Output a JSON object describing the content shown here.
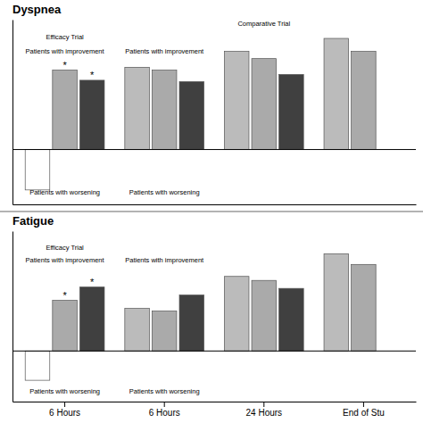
{
  "chart_data": [
    {
      "type": "bar",
      "title": "Dyspnea",
      "categories": [
        null,
        null,
        null,
        null
      ],
      "series": [
        {
          "colors": [
            "white",
            "#bbbbbb",
            "#bbbbbb",
            "#bbbbbb"
          ],
          "values": [
            -28,
            57,
            68,
            77
          ]
        },
        {
          "color": "#aaaaaa",
          "values": [
            55,
            55,
            63,
            68
          ]
        },
        {
          "color": "#404040",
          "values": [
            48,
            47,
            52,
            0
          ]
        }
      ],
      "ylim": [
        -38,
        90
      ],
      "yticks": [],
      "tick_labels": false,
      "grid": false,
      "annotations": [
        {
          "text": "Efficacy Trial",
          "category": 0,
          "y": 80
        },
        {
          "text": "Patients with improvement",
          "category": 0,
          "y": 70
        },
        {
          "text": "Patients with worsening",
          "category": 0,
          "y": -28
        },
        {
          "text": "Patients with improvement",
          "category": 1,
          "y": 70
        },
        {
          "text": "Patients with worsening",
          "category": 1,
          "y": -28
        },
        {
          "text": "Comparative Trial",
          "category": 2,
          "y": 89
        },
        {
          "text": "*",
          "category": 0,
          "series": 1,
          "y": 56
        },
        {
          "text": "*",
          "category": 0,
          "series": 2,
          "y": 49
        }
      ]
    },
    {
      "type": "bar",
      "title": "Fatigue",
      "categories": [
        "6 Hours",
        "6 Hours",
        "24 Hours",
        "End of Stu"
      ],
      "series": [
        {
          "colors": [
            "white",
            "#bbbbbb",
            "#bbbbbb",
            "#bbbbbb"
          ],
          "values": [
            -22,
            32,
            56,
            73
          ]
        },
        {
          "color": "#aaaaaa",
          "values": [
            38,
            30,
            53,
            65
          ]
        },
        {
          "color": "#404040",
          "values": [
            48,
            42,
            47,
            0
          ]
        }
      ],
      "ylim": [
        -38,
        90
      ],
      "yticks": [],
      "tick_labels": "x",
      "grid": false,
      "annotations": [
        {
          "text": "Efficacy Trial",
          "category": 0,
          "y": 80
        },
        {
          "text": "Patients with improvement",
          "category": 0,
          "y": 70
        },
        {
          "text": "Patients with worsening",
          "category": 0,
          "y": -28
        },
        {
          "text": "Patients with improvement",
          "category": 1,
          "y": 70
        },
        {
          "text": "Patients with worsening",
          "category": 1,
          "y": -28
        },
        {
          "text": "*",
          "category": 0,
          "series": 1,
          "y": 39
        },
        {
          "text": "*",
          "category": 0,
          "series": 2,
          "y": 49
        }
      ]
    }
  ]
}
